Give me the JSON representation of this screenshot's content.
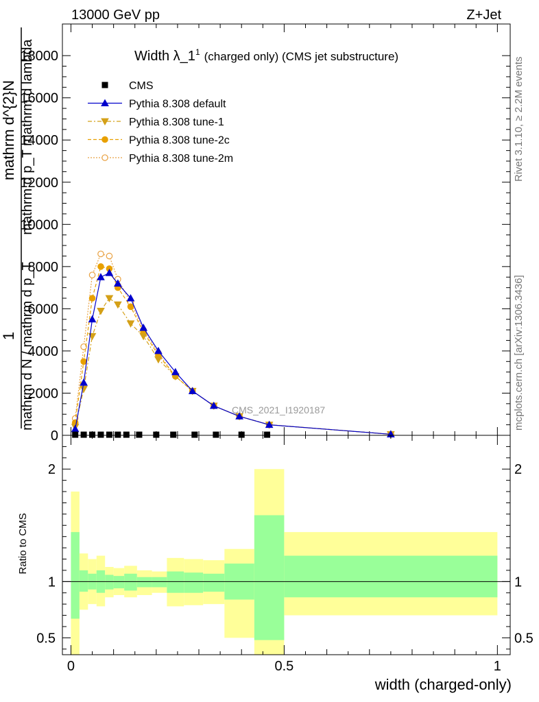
{
  "header": {
    "energy_label": "13000 GeV pp",
    "process_label": "Z+Jet",
    "title_main": "Width λ_1",
    "title_sup": "1",
    "title_rest": "(charged only) (CMS jet substructure)",
    "side_label_top": "Rivet 3.1.10, ≥ 2.2M events",
    "side_label_bottom": "mcplots.cern.ch [arXiv:1306.3436]",
    "watermark": "CMS_2021_I1920187"
  },
  "colors": {
    "cms": "#000000",
    "default": "#0000cc",
    "tune1": "#d4a017",
    "tune2c": "#e8a000",
    "tune2m": "#e8a040",
    "band_inner": "#99ff99",
    "band_outer": "#ffff99"
  },
  "chart_data": [
    {
      "type": "line",
      "xlim": [
        -0.02,
        1.03
      ],
      "ylim": [
        0,
        19500
      ],
      "yticks": [
        0,
        2000,
        4000,
        6000,
        8000,
        10000,
        12000,
        14000,
        16000,
        18000
      ],
      "ytick_labels": [
        "0",
        "2000",
        "4000",
        "6000",
        "8000",
        "10000",
        "12000",
        "14000",
        "16000",
        "18000"
      ],
      "ylabel_parts": [
        "1",
        "mathrm d N / mathrm d p_T",
        "mathrm d^{2}N",
        "mathrm d p_T mathrm d lambda"
      ],
      "ylabel_full": "1 / mathrm d N / mathrm d p_T mathrm d^{2}N / mathrm d p_T mathrm d lambda",
      "legend": {
        "placement": "top-left",
        "entries": [
          "CMS",
          "Pythia 8.308 default",
          "Pythia 8.308 tune-1",
          "Pythia 8.308 tune-2c",
          "Pythia 8.308 tune-2m"
        ]
      },
      "series": [
        {
          "name": "CMS",
          "style": "square",
          "x": [
            0.01,
            0.03,
            0.05,
            0.07,
            0.09,
            0.11,
            0.13,
            0.16,
            0.2,
            0.24,
            0.29,
            0.34,
            0.4,
            0.46
          ],
          "y": [
            30,
            30,
            30,
            30,
            30,
            30,
            30,
            30,
            30,
            30,
            30,
            30,
            30,
            30
          ]
        },
        {
          "name": "Pythia 8.308 default",
          "style": "solid",
          "x": [
            0.01,
            0.03,
            0.05,
            0.07,
            0.09,
            0.11,
            0.14,
            0.17,
            0.205,
            0.245,
            0.285,
            0.335,
            0.395,
            0.465,
            0.75
          ],
          "y": [
            300,
            2500,
            5500,
            7500,
            7700,
            7200,
            6500,
            5100,
            4000,
            3000,
            2100,
            1400,
            900,
            500,
            50
          ]
        },
        {
          "name": "Pythia 8.308 tune-1",
          "style": "dashdot",
          "x": [
            0.01,
            0.03,
            0.05,
            0.07,
            0.09,
            0.11,
            0.14,
            0.17,
            0.205,
            0.245,
            0.285,
            0.335,
            0.395,
            0.465,
            0.75
          ],
          "y": [
            400,
            2200,
            4700,
            5900,
            6500,
            6200,
            5300,
            4700,
            3600,
            2800,
            2100,
            1400,
            900,
            500,
            50
          ]
        },
        {
          "name": "Pythia 8.308 tune-2c",
          "style": "dashed",
          "x": [
            0.01,
            0.03,
            0.05,
            0.07,
            0.09,
            0.11,
            0.14,
            0.17,
            0.205,
            0.245,
            0.285,
            0.335,
            0.395,
            0.465,
            0.75
          ],
          "y": [
            600,
            3500,
            6500,
            8000,
            7900,
            7000,
            6100,
            4900,
            3800,
            2800,
            2100,
            1400,
            900,
            500,
            50
          ]
        },
        {
          "name": "Pythia 8.308 tune-2m",
          "style": "dotted",
          "x": [
            0.01,
            0.03,
            0.05,
            0.07,
            0.09,
            0.11,
            0.14,
            0.17,
            0.205,
            0.245,
            0.285,
            0.335,
            0.395,
            0.465,
            0.75
          ],
          "y": [
            800,
            4200,
            7600,
            8600,
            8500,
            7400,
            6300,
            5000,
            3900,
            2800,
            2100,
            1400,
            900,
            500,
            50
          ]
        }
      ]
    },
    {
      "type": "area",
      "xlim": [
        -0.02,
        1.03
      ],
      "ylim": [
        0.35,
        2.3
      ],
      "yticks": [
        0.5,
        1,
        2
      ],
      "ytick_labels": [
        "0.5",
        "1",
        "2"
      ],
      "xticks": [
        0,
        0.5,
        1
      ],
      "xtick_labels": [
        "0",
        "0.5",
        "1"
      ],
      "ylabel": "Ratio to CMS",
      "xlabel": "width (charged-only)",
      "reference_line": 1,
      "bands": [
        {
          "x0": 0.0,
          "x1": 0.02,
          "inner": [
            0.67,
            1.44
          ],
          "outer": [
            0.35,
            1.8
          ]
        },
        {
          "x0": 0.02,
          "x1": 0.04,
          "inner": [
            0.91,
            1.1
          ],
          "outer": [
            0.75,
            1.25
          ]
        },
        {
          "x0": 0.04,
          "x1": 0.06,
          "inner": [
            0.93,
            1.07
          ],
          "outer": [
            0.8,
            1.2
          ]
        },
        {
          "x0": 0.06,
          "x1": 0.08,
          "inner": [
            0.9,
            1.1
          ],
          "outer": [
            0.78,
            1.23
          ]
        },
        {
          "x0": 0.08,
          "x1": 0.1,
          "inner": [
            0.93,
            1.06
          ],
          "outer": [
            0.86,
            1.13
          ]
        },
        {
          "x0": 0.1,
          "x1": 0.125,
          "inner": [
            0.94,
            1.05
          ],
          "outer": [
            0.88,
            1.12
          ]
        },
        {
          "x0": 0.125,
          "x1": 0.155,
          "inner": [
            0.92,
            1.07
          ],
          "outer": [
            0.86,
            1.14
          ]
        },
        {
          "x0": 0.155,
          "x1": 0.19,
          "inner": [
            0.95,
            1.04
          ],
          "outer": [
            0.88,
            1.1
          ]
        },
        {
          "x0": 0.19,
          "x1": 0.225,
          "inner": [
            0.95,
            1.04
          ],
          "outer": [
            0.9,
            1.09
          ]
        },
        {
          "x0": 0.225,
          "x1": 0.265,
          "inner": [
            0.9,
            1.09
          ],
          "outer": [
            0.78,
            1.21
          ]
        },
        {
          "x0": 0.265,
          "x1": 0.31,
          "inner": [
            0.9,
            1.08
          ],
          "outer": [
            0.79,
            1.2
          ]
        },
        {
          "x0": 0.31,
          "x1": 0.36,
          "inner": [
            0.91,
            1.07
          ],
          "outer": [
            0.8,
            1.19
          ]
        },
        {
          "x0": 0.36,
          "x1": 0.43,
          "inner": [
            0.84,
            1.16
          ],
          "outer": [
            0.5,
            1.29
          ]
        },
        {
          "x0": 0.43,
          "x1": 0.5,
          "inner": [
            0.48,
            1.59
          ],
          "outer": [
            0.35,
            2.0
          ]
        },
        {
          "x0": 0.5,
          "x1": 1.0,
          "inner": [
            0.86,
            1.23
          ],
          "outer": [
            0.7,
            1.44
          ]
        }
      ]
    }
  ]
}
